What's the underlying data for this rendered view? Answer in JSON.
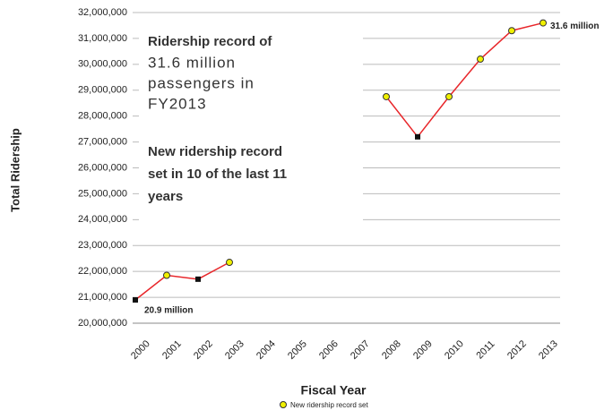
{
  "chart_data": {
    "type": "line",
    "x_label": "Fiscal Year",
    "y_label": "Total Ridership",
    "categories": [
      "2000",
      "2001",
      "2002",
      "2003",
      "2004",
      "2005",
      "2006",
      "2007",
      "2008",
      "2009",
      "2010",
      "2011",
      "2012",
      "2013"
    ],
    "series": [
      {
        "name": "New ridership record set",
        "color": "#e8262a",
        "values": [
          20900000,
          21850000,
          21700000,
          22350000,
          null,
          null,
          null,
          null,
          28750000,
          27200000,
          28750000,
          30200000,
          31300000,
          31600000
        ],
        "record_set": [
          false,
          true,
          false,
          true,
          null,
          null,
          null,
          null,
          true,
          false,
          true,
          true,
          true,
          true
        ]
      }
    ],
    "ylim": [
      20000000,
      32000000
    ],
    "yticks": [
      {
        "value": 20000000,
        "label": "20,000,000"
      },
      {
        "value": 21000000,
        "label": "21,000,000"
      },
      {
        "value": 22000000,
        "label": "22,000,000"
      },
      {
        "value": 23000000,
        "label": "23,000,000"
      },
      {
        "value": 24000000,
        "label": "24,000,000"
      },
      {
        "value": 25000000,
        "label": "25,000,000"
      },
      {
        "value": 26000000,
        "label": "26,000,000"
      },
      {
        "value": 27000000,
        "label": "27,000,000"
      },
      {
        "value": 28000000,
        "label": "28,000,000"
      },
      {
        "value": 29000000,
        "label": "29,000,000"
      },
      {
        "value": 30000000,
        "label": "30,000,000"
      },
      {
        "value": 31000000,
        "label": "31,000,000"
      },
      {
        "value": 32000000,
        "label": "32,000,000"
      }
    ],
    "grid": true,
    "annotations": [
      "31.6 million",
      "20.9 million"
    ],
    "text_box": [
      "Ridership record of",
      "31.6 million",
      "passengers in",
      "FY2013",
      "New ridership record",
      "set in 10 of the last 11",
      "years"
    ],
    "legend": "bottom"
  }
}
